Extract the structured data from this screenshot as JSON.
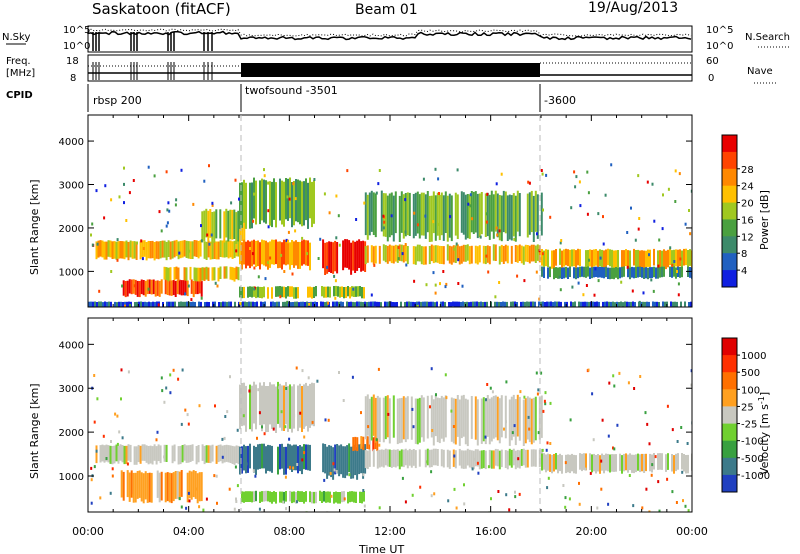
{
  "header": {
    "station": "Saskatoon (fitACF)",
    "beam": "Beam 01",
    "date": "19/Aug/2013"
  },
  "noise_panel": {
    "left_label": "N.Sky",
    "right_label": "N.Search",
    "left_ticks": [
      "10^5",
      "10^0"
    ],
    "right_ticks": [
      "10^5",
      "10^0"
    ]
  },
  "freq_panel": {
    "left_label_1": "Freq.",
    "left_label_2": "[MHz]",
    "right_label": "Nave",
    "left_ticks": [
      "18",
      "8"
    ],
    "right_ticks": [
      "60",
      "0"
    ]
  },
  "cpid_panel": {
    "label": "CPID",
    "programs": [
      {
        "name": "rbsp 200",
        "start_hour": 0
      },
      {
        "name": "twofsound -3501",
        "start_hour": 6
      },
      {
        "name": "-3600",
        "start_hour": 18
      }
    ]
  },
  "chart_data": [
    {
      "type": "heatmap",
      "name": "power",
      "ylabel": "Slant Range [km]",
      "xlim_hours": [
        0,
        24
      ],
      "ylim_km": [
        180,
        4600
      ],
      "yticks": [
        "1000",
        "2000",
        "3000",
        "4000"
      ],
      "colorbar": {
        "label": "Power [dB]",
        "ticks": [
          "4",
          "8",
          "12",
          "16",
          "20",
          "24",
          "28"
        ],
        "colors": [
          "#1020e0",
          "#2060c0",
          "#3c8a6a",
          "#4aa040",
          "#a0c820",
          "#ffc000",
          "#ff8800",
          "#ff4400",
          "#e80000"
        ]
      },
      "echo_regions": [
        {
          "x0": 0.3,
          "x1": 6.0,
          "y0": 1300,
          "y1": 1700,
          "level": 5
        },
        {
          "x0": 1.3,
          "x1": 4.5,
          "y0": 450,
          "y1": 800,
          "level": 7
        },
        {
          "x0": 3.0,
          "x1": 6.0,
          "y0": 800,
          "y1": 1100,
          "level": 5
        },
        {
          "x0": 4.5,
          "x1": 6.2,
          "y0": 1700,
          "y1": 2400,
          "level": 4
        },
        {
          "x0": 6.0,
          "x1": 9.0,
          "y0": 2100,
          "y1": 3100,
          "level": 3
        },
        {
          "x0": 6.0,
          "x1": 8.8,
          "y0": 1100,
          "y1": 1700,
          "level": 6
        },
        {
          "x0": 6.0,
          "x1": 11.0,
          "y0": 400,
          "y1": 650,
          "level": 4
        },
        {
          "x0": 9.3,
          "x1": 11.0,
          "y0": 1000,
          "y1": 1700,
          "level": 8
        },
        {
          "x0": 11.0,
          "x1": 18.0,
          "y0": 1800,
          "y1": 2800,
          "level": 3
        },
        {
          "x0": 11.0,
          "x1": 18.0,
          "y0": 1200,
          "y1": 1600,
          "level": 5
        },
        {
          "x0": 18.0,
          "x1": 24.0,
          "y0": 1100,
          "y1": 1500,
          "level": 5
        },
        {
          "x0": 18.0,
          "x1": 24.0,
          "y0": 850,
          "y1": 1100,
          "level": 2
        },
        {
          "x0": 0.0,
          "x1": 24.0,
          "y0": 180,
          "y1": 300,
          "level": 1
        }
      ]
    },
    {
      "type": "heatmap",
      "name": "velocity",
      "ylabel": "Slant Range [km]",
      "xlabel": "Time UT",
      "xlim_hours": [
        0,
        24
      ],
      "ylim_km": [
        180,
        4600
      ],
      "yticks": [
        "1000",
        "2000",
        "3000",
        "4000"
      ],
      "xticks": [
        "00:00",
        "04:00",
        "08:00",
        "12:00",
        "16:00",
        "20:00",
        "00:00"
      ],
      "colorbar": {
        "label": "Velocity [m s^-1]",
        "ticks": [
          "1000",
          "500",
          "100",
          "25",
          "-25",
          "-100",
          "-500",
          "-1000"
        ],
        "colors": [
          "#2040c0",
          "#3c7a8a",
          "#38a040",
          "#70d030",
          "#c8c8c0",
          "#ffa020",
          "#ff7000",
          "#ff3000",
          "#e00000"
        ]
      },
      "echo_regions": [
        {
          "x0": 0.3,
          "x1": 6.0,
          "y0": 1300,
          "y1": 1700,
          "v": 4
        },
        {
          "x0": 1.3,
          "x1": 4.5,
          "y0": 450,
          "y1": 1100,
          "v": 5
        },
        {
          "x0": 6.0,
          "x1": 9.0,
          "y0": 2100,
          "y1": 3100,
          "v": 4
        },
        {
          "x0": 6.0,
          "x1": 8.8,
          "y0": 1100,
          "y1": 1700,
          "v": 1
        },
        {
          "x0": 6.0,
          "x1": 11.0,
          "y0": 400,
          "y1": 650,
          "v": 3
        },
        {
          "x0": 9.3,
          "x1": 11.0,
          "y0": 1000,
          "y1": 1700,
          "v": 1
        },
        {
          "x0": 10.5,
          "x1": 11.5,
          "y0": 1600,
          "y1": 1900,
          "v": 6
        },
        {
          "x0": 11.0,
          "x1": 18.0,
          "y0": 1800,
          "y1": 2800,
          "v": 4
        },
        {
          "x0": 11.0,
          "x1": 18.0,
          "y0": 1200,
          "y1": 1600,
          "v": 4
        },
        {
          "x0": 18.0,
          "x1": 24.0,
          "y0": 1100,
          "y1": 1500,
          "v": 4
        }
      ]
    }
  ]
}
